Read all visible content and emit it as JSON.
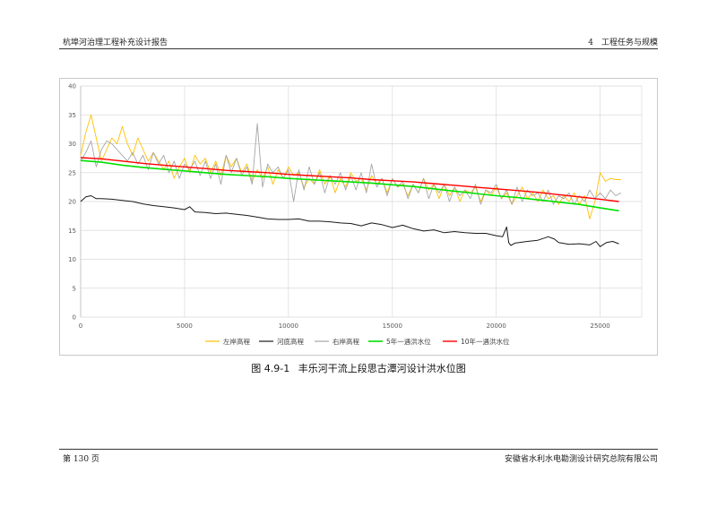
{
  "header": {
    "left": "杭埠河治理工程补充设计报告",
    "right": "4　工程任务与规模"
  },
  "footer": {
    "left": "第 130 页",
    "right": "安徽省水利水电勘测设计研究总院有限公司"
  },
  "caption": {
    "number": "图 4.9-1",
    "title": "丰乐河干流上段思古潭河设计洪水位图"
  },
  "chart_data": {
    "type": "line",
    "xlim": [
      0,
      27000
    ],
    "ylim": [
      0,
      40
    ],
    "x_ticks": [
      0,
      5000,
      10000,
      15000,
      20000,
      25000
    ],
    "y_ticks": [
      0,
      5,
      10,
      15,
      20,
      25,
      30,
      35,
      40
    ],
    "x_tick_labels": [
      "0",
      "5000",
      "10000",
      "15000",
      "20000",
      "25000"
    ],
    "y_tick_labels": [
      "0",
      "5",
      "10",
      "15",
      "20",
      "25",
      "30",
      "35",
      "40"
    ],
    "grid": true,
    "legend_position": "bottom",
    "series": [
      {
        "name": "左岸高程",
        "color": "#ffc000",
        "width": 0.9,
        "x": [
          0,
          250,
          500,
          750,
          1000,
          1250,
          1500,
          1750,
          2000,
          2250,
          2500,
          2750,
          3000,
          3250,
          3500,
          3750,
          4000,
          4250,
          4500,
          4750,
          5000,
          5250,
          5500,
          5750,
          6000,
          6250,
          6500,
          6750,
          7000,
          7250,
          7500,
          7750,
          8000,
          8250,
          8500,
          8750,
          9000,
          9250,
          9500,
          9750,
          10000,
          10250,
          10500,
          10750,
          11000,
          11250,
          11500,
          11750,
          12000,
          12250,
          12500,
          12750,
          13000,
          13250,
          13500,
          13750,
          14000,
          14250,
          14500,
          14750,
          15000,
          15250,
          15500,
          15750,
          16000,
          16250,
          16500,
          16750,
          17000,
          17250,
          17500,
          17750,
          18000,
          18250,
          18500,
          18750,
          19000,
          19250,
          19500,
          19750,
          20000,
          20250,
          20500,
          20750,
          21000,
          21250,
          21500,
          21750,
          22000,
          22250,
          22500,
          22750,
          23000,
          23250,
          23500,
          23750,
          24000,
          24250,
          24500,
          24750,
          25000,
          25250,
          25500,
          25750,
          26000
        ],
        "y": [
          28,
          32,
          35,
          31,
          27,
          29,
          31,
          30,
          33,
          30,
          28,
          31,
          29,
          27,
          28.5,
          27,
          25.5,
          27,
          24,
          26,
          27.5,
          25,
          28,
          26.5,
          27.5,
          25,
          27,
          24.5,
          28,
          26,
          27.5,
          25,
          26.5,
          23.5,
          25.5,
          24,
          26,
          23,
          25.5,
          24,
          26,
          24.5,
          25,
          22.5,
          24,
          23,
          25.5,
          23,
          24.5,
          21.5,
          24,
          22.5,
          25,
          23.5,
          24,
          22,
          24.5,
          23,
          24,
          21.5,
          24,
          22.5,
          23,
          21,
          23,
          21.5,
          24,
          22,
          23,
          20.5,
          23,
          21,
          22.5,
          20,
          22,
          21.5,
          22.5,
          20,
          22,
          21,
          22.5,
          20.5,
          21.5,
          19.5,
          21,
          22.5,
          20.5,
          21.5,
          20,
          22,
          20.5,
          21,
          19.5,
          21,
          20,
          21.5,
          19.5,
          21,
          17,
          20,
          25,
          23.5,
          24,
          23.8,
          23.8
        ]
      },
      {
        "name": "河底高程",
        "color": "#1a1a1a",
        "width": 1.0,
        "x": [
          0,
          250,
          500,
          750,
          1000,
          1500,
          2000,
          2500,
          3000,
          3500,
          4000,
          4500,
          5000,
          5250,
          5500,
          6000,
          6500,
          7000,
          7500,
          8000,
          8500,
          9000,
          9500,
          10000,
          10500,
          11000,
          11500,
          12000,
          12500,
          13000,
          13500,
          14000,
          14500,
          15000,
          15500,
          16000,
          16500,
          17000,
          17500,
          18000,
          18500,
          19000,
          19500,
          20000,
          20300,
          20500,
          20600,
          20700,
          20900,
          21500,
          22000,
          22500,
          22800,
          23000,
          23500,
          24000,
          24500,
          24800,
          25000,
          25300,
          25600,
          25900
        ],
        "y": [
          20,
          20.8,
          21,
          20.5,
          20.5,
          20.4,
          20.2,
          20,
          19.6,
          19.3,
          19.1,
          18.9,
          18.6,
          19.1,
          18.2,
          18.1,
          17.9,
          18,
          17.8,
          17.6,
          17.3,
          17,
          16.9,
          16.9,
          17,
          16.6,
          16.6,
          16.5,
          16.3,
          16.2,
          15.8,
          16.3,
          16,
          15.5,
          15.9,
          15.3,
          14.9,
          15.1,
          14.6,
          14.8,
          14.6,
          14.5,
          14.5,
          14.1,
          13.9,
          15.6,
          12.9,
          12.4,
          12.8,
          13.1,
          13.3,
          13.9,
          13.5,
          12.9,
          12.6,
          12.7,
          12.5,
          13.1,
          12.2,
          12.9,
          13.1,
          12.7
        ]
      },
      {
        "name": "右岸高程",
        "color": "#a6a6a6",
        "width": 0.9,
        "x": [
          0,
          250,
          500,
          750,
          1000,
          1250,
          1500,
          1750,
          2000,
          2250,
          2500,
          2750,
          3000,
          3250,
          3500,
          3750,
          4000,
          4250,
          4500,
          4750,
          5000,
          5250,
          5500,
          5750,
          6000,
          6250,
          6500,
          6750,
          7000,
          7250,
          7500,
          7750,
          8000,
          8250,
          8500,
          8750,
          9000,
          9250,
          9500,
          9750,
          10000,
          10250,
          10500,
          10750,
          11000,
          11250,
          11500,
          11750,
          12000,
          12250,
          12500,
          12750,
          13000,
          13250,
          13500,
          13750,
          14000,
          14250,
          14500,
          14750,
          15000,
          15250,
          15500,
          15750,
          16000,
          16250,
          16500,
          16750,
          17000,
          17250,
          17500,
          17750,
          18000,
          18250,
          18500,
          18750,
          19000,
          19250,
          19500,
          19750,
          20000,
          20250,
          20500,
          20750,
          21000,
          21250,
          21500,
          21750,
          22000,
          22250,
          22500,
          22750,
          23000,
          23250,
          23500,
          23750,
          24000,
          24250,
          24500,
          24750,
          25000,
          25250,
          25500,
          25750,
          26000
        ],
        "y": [
          27,
          28.5,
          30.5,
          26,
          29,
          30.5,
          30,
          29,
          28,
          27,
          28.5,
          26.5,
          28,
          25.5,
          28.5,
          26.5,
          28,
          25,
          27,
          24,
          26.5,
          25.5,
          27,
          24.5,
          27,
          24,
          26.5,
          23,
          28,
          25,
          27.5,
          24.5,
          26,
          23,
          33.5,
          22.5,
          26.5,
          25,
          26,
          24,
          25.5,
          20,
          25.5,
          22,
          26,
          23,
          25,
          21.5,
          24.5,
          23,
          25,
          22,
          24.5,
          22,
          25,
          21.5,
          26.5,
          22.5,
          24,
          21,
          24,
          22.5,
          23.5,
          20.5,
          23,
          21.5,
          24,
          20.5,
          23,
          21.5,
          23,
          20,
          22.5,
          21,
          22,
          20.5,
          23,
          19.5,
          22,
          21.5,
          23,
          20.5,
          22,
          19.5,
          22.5,
          20,
          22,
          21,
          21.5,
          20,
          22,
          19.5,
          21,
          20.5,
          21.5,
          19.5,
          21,
          20,
          22,
          20.5,
          21.5,
          20.5,
          22,
          21,
          21.5
        ]
      },
      {
        "name": "5年一遇洪水位",
        "color": "#00e000",
        "width": 1.6,
        "x": [
          0,
          1000,
          2000,
          3000,
          4000,
          5000,
          6000,
          7000,
          8000,
          9000,
          10000,
          11000,
          12000,
          13000,
          14000,
          15000,
          16000,
          17000,
          18000,
          19000,
          20000,
          21000,
          22000,
          23000,
          24000,
          25000,
          25900
        ],
        "y": [
          27.1,
          26.8,
          26.3,
          25.9,
          25.6,
          25.3,
          25.0,
          24.7,
          24.5,
          24.3,
          24.0,
          23.8,
          23.6,
          23.4,
          23.2,
          22.9,
          22.6,
          22.2,
          21.8,
          21.4,
          21.0,
          20.7,
          20.3,
          19.9,
          19.5,
          18.9,
          18.4
        ]
      },
      {
        "name": "10年一遇洪水位",
        "color": "#ff0000",
        "width": 1.4,
        "x": [
          0,
          1000,
          2000,
          3000,
          4000,
          5000,
          6000,
          7000,
          8000,
          9000,
          10000,
          11000,
          12000,
          13000,
          14000,
          15000,
          16000,
          17000,
          18000,
          19000,
          20000,
          21000,
          22000,
          23000,
          24000,
          25000,
          25900
        ],
        "y": [
          27.6,
          27.4,
          27.0,
          26.6,
          26.3,
          26.0,
          25.7,
          25.4,
          25.2,
          25.0,
          24.7,
          24.5,
          24.3,
          24.1,
          23.8,
          23.6,
          23.4,
          23.1,
          22.8,
          22.5,
          22.2,
          21.9,
          21.6,
          21.2,
          20.8,
          20.4,
          20.0
        ]
      }
    ]
  }
}
